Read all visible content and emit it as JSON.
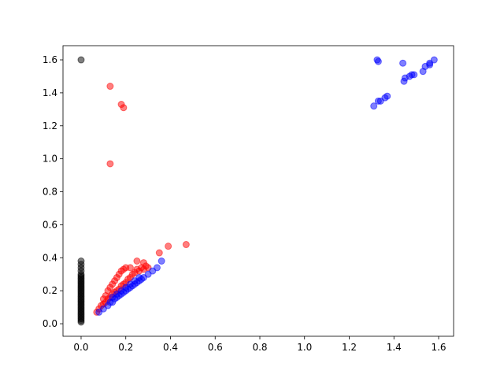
{
  "chart_data": {
    "type": "scatter",
    "xlim": [
      -0.081,
      1.667
    ],
    "ylim": [
      -0.076,
      1.686
    ],
    "xticks": [
      {
        "value": 0,
        "label": "0.0"
      },
      {
        "value": 0.2,
        "label": "0.2"
      },
      {
        "value": 0.4,
        "label": "0.4"
      },
      {
        "value": 0.6,
        "label": "0.6"
      },
      {
        "value": 0.8,
        "label": "0.8"
      },
      {
        "value": 1.0,
        "label": "1.0"
      },
      {
        "value": 1.2,
        "label": "1.2"
      },
      {
        "value": 1.4,
        "label": "1.4"
      },
      {
        "value": 1.6,
        "label": "1.6"
      }
    ],
    "yticks": [
      {
        "value": 0,
        "label": "0.0"
      },
      {
        "value": 0.2,
        "label": "0.2"
      },
      {
        "value": 0.4,
        "label": "0.4"
      },
      {
        "value": 0.6,
        "label": "0.6"
      },
      {
        "value": 0.8,
        "label": "0.8"
      },
      {
        "value": 1.0,
        "label": "1.0"
      },
      {
        "value": 1.2,
        "label": "1.2"
      },
      {
        "value": 1.4,
        "label": "1.4"
      },
      {
        "value": 1.6,
        "label": "1.6"
      }
    ],
    "grid": false,
    "series": [
      {
        "color": "black",
        "x": [
          0,
          0,
          0,
          0,
          0,
          0,
          0,
          0,
          0,
          0,
          0,
          0,
          0,
          0,
          0,
          0,
          0,
          0,
          0,
          0,
          0,
          0,
          0,
          0,
          0,
          0,
          0,
          0,
          0,
          0,
          0,
          0,
          0,
          0,
          0
        ],
        "values": [
          0.01,
          0.02,
          0.03,
          0.04,
          0.05,
          0.06,
          0.07,
          0.08,
          0.09,
          0.1,
          0.11,
          0.12,
          0.13,
          0.14,
          0.15,
          0.16,
          0.17,
          0.18,
          0.19,
          0.2,
          0.21,
          0.22,
          0.23,
          0.24,
          0.25,
          0.26,
          0.27,
          0.28,
          0.29,
          0.3,
          0.32,
          0.34,
          0.36,
          0.38,
          1.6
        ]
      },
      {
        "color": "red",
        "x": [
          0.07,
          0.08,
          0.09,
          0.1,
          0.1,
          0.11,
          0.11,
          0.12,
          0.12,
          0.13,
          0.13,
          0.14,
          0.14,
          0.15,
          0.15,
          0.16,
          0.16,
          0.17,
          0.17,
          0.18,
          0.18,
          0.19,
          0.19,
          0.2,
          0.2,
          0.21,
          0.22,
          0.23,
          0.24,
          0.25,
          0.26,
          0.27,
          0.28,
          0.29,
          0.3,
          0.13,
          0.18,
          0.19,
          0.13,
          0.47,
          0.39,
          0.35,
          0.25,
          0.28,
          0.22
        ],
        "values": [
          0.07,
          0.09,
          0.11,
          0.12,
          0.15,
          0.13,
          0.17,
          0.15,
          0.2,
          0.16,
          0.22,
          0.18,
          0.24,
          0.19,
          0.26,
          0.2,
          0.28,
          0.21,
          0.3,
          0.23,
          0.32,
          0.24,
          0.33,
          0.25,
          0.34,
          0.27,
          0.28,
          0.3,
          0.31,
          0.33,
          0.32,
          0.34,
          0.33,
          0.35,
          0.34,
          1.44,
          1.33,
          1.31,
          0.97,
          0.48,
          0.47,
          0.43,
          0.38,
          0.37,
          0.34
        ]
      },
      {
        "color": "blue",
        "x": [
          0.08,
          0.1,
          0.12,
          0.13,
          0.14,
          0.15,
          0.16,
          0.17,
          0.18,
          0.19,
          0.2,
          0.21,
          0.22,
          0.23,
          0.24,
          0.25,
          0.26,
          0.27,
          0.28,
          0.3,
          0.32,
          0.34,
          0.36,
          0.14,
          0.16,
          0.18,
          0.2,
          0.22,
          0.24,
          0.26,
          1.31,
          1.33,
          1.34,
          1.36,
          1.37,
          1.325,
          1.33,
          1.44,
          1.445,
          1.45,
          1.47,
          1.48,
          1.49,
          1.53,
          1.54,
          1.56,
          1.58,
          1.56
        ],
        "values": [
          0.07,
          0.09,
          0.11,
          0.13,
          0.13,
          0.15,
          0.16,
          0.17,
          0.18,
          0.19,
          0.2,
          0.21,
          0.22,
          0.23,
          0.24,
          0.25,
          0.26,
          0.27,
          0.28,
          0.3,
          0.32,
          0.34,
          0.38,
          0.16,
          0.18,
          0.2,
          0.22,
          0.24,
          0.26,
          0.28,
          1.32,
          1.35,
          1.35,
          1.37,
          1.38,
          1.6,
          1.59,
          1.58,
          1.47,
          1.49,
          1.5,
          1.51,
          1.51,
          1.53,
          1.56,
          1.57,
          1.6,
          1.58
        ]
      }
    ]
  }
}
